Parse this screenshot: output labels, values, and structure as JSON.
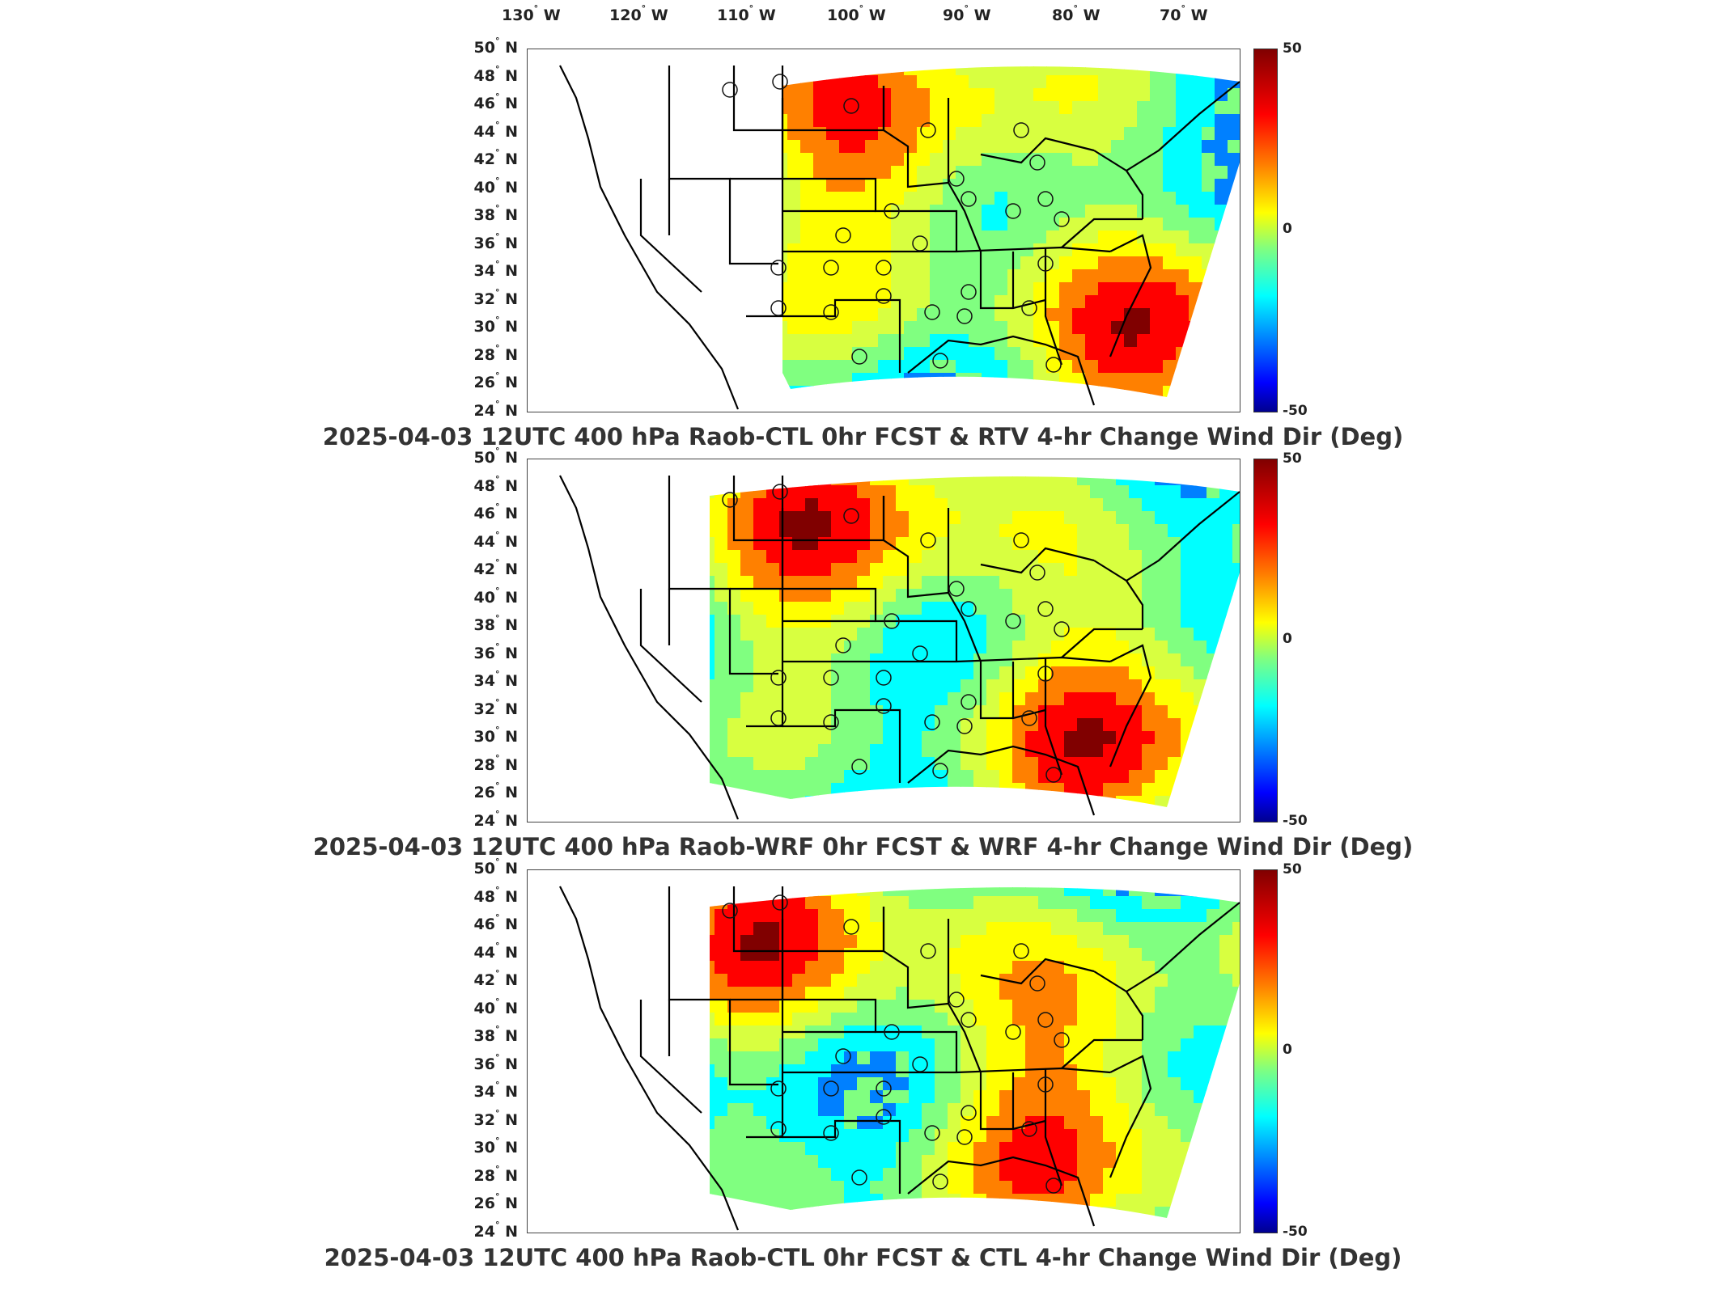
{
  "lon_labels": [
    "130",
    "120",
    "110",
    "100",
    "90",
    "80",
    "70"
  ],
  "lon_suffix": "W",
  "lat_labels": [
    "50",
    "48",
    "46",
    "44",
    "42",
    "40",
    "38",
    "36",
    "34",
    "32",
    "30",
    "28",
    "26",
    "24"
  ],
  "lat_suffix": "N",
  "degree_symbol": "°",
  "colorbar": {
    "max": "50",
    "mid": "0",
    "min": "-50",
    "colors": [
      "#800000",
      "#ff0000",
      "#ff8000",
      "#ffff00",
      "#80ff80",
      "#00ffff",
      "#0080ff",
      "#0000ff",
      "#00008f"
    ]
  },
  "panels": [
    {
      "title": "2025-04-03 12UTC 400 hPa Raob-CTL 0hr FCST & RTV 4-hr Change Wind Dir (Deg)"
    },
    {
      "title": "2025-04-03 12UTC 400 hPa Raob-WRF 0hr FCST & WRF 4-hr Change Wind Dir (Deg)"
    },
    {
      "title": "2025-04-03 12UTC 400 hPa Raob-CTL 0hr FCST & CTL 4-hr Change Wind Dir (Deg)"
    }
  ]
}
